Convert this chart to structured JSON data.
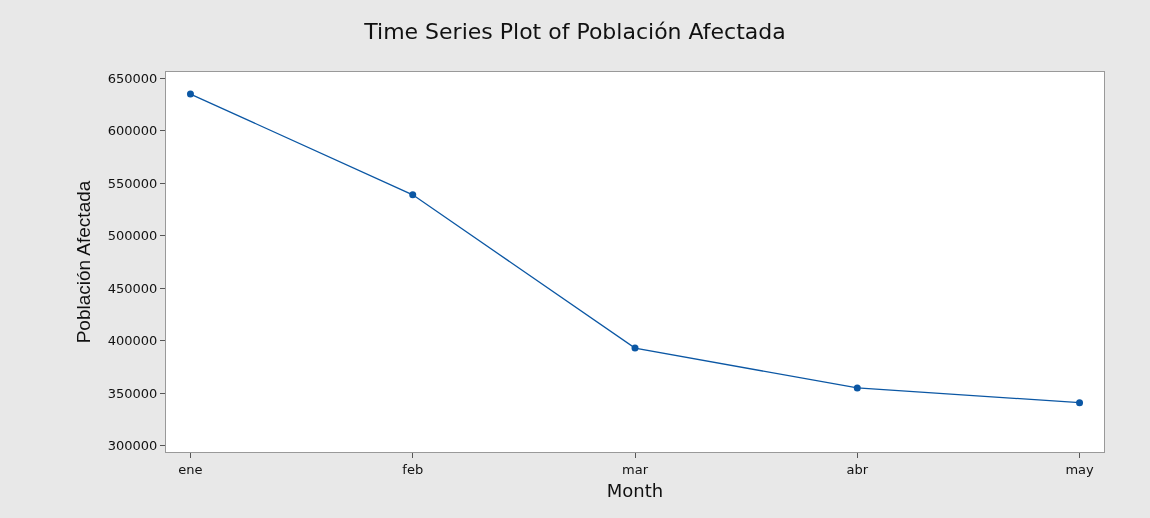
{
  "chart_data": {
    "type": "line",
    "title": "Time Series Plot of Población Afectada",
    "xlabel": "Month",
    "ylabel": "Población Afectada",
    "categories": [
      "ene",
      "feb",
      "mar",
      "abr",
      "may"
    ],
    "series": [
      {
        "color": "#0b57a4",
        "values": [
          635000,
          539000,
          393000,
          355000,
          341000
        ]
      }
    ],
    "ylim": [
      294000,
      656000
    ],
    "yticks": [
      300000,
      350000,
      400000,
      450000,
      500000,
      550000,
      600000,
      650000
    ],
    "grid": false,
    "marker": "circle",
    "line_style": "solid"
  }
}
